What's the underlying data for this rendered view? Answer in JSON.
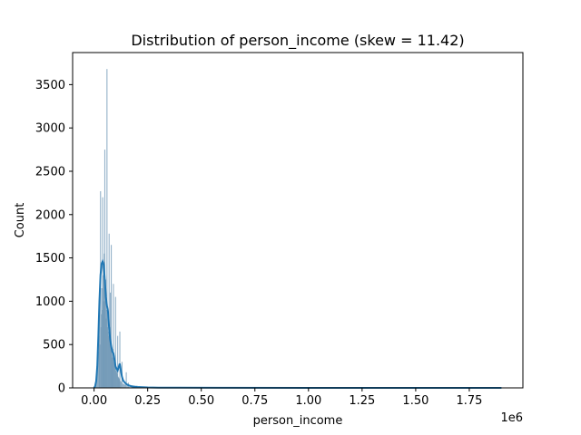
{
  "chart_data": {
    "type": "bar",
    "title": "Distribution of person_income (skew = 11.42)",
    "xlabel": "person_income",
    "ylabel": "Count",
    "x_offset_label": "1e6",
    "xlim": [
      -100000,
      2000000
    ],
    "ylim": [
      0,
      3870
    ],
    "xticks": [
      0,
      250000,
      500000,
      750000,
      1000000,
      1250000,
      1500000,
      1750000
    ],
    "xtick_labels": [
      "0.00",
      "0.25",
      "0.50",
      "0.75",
      "1.00",
      "1.25",
      "1.50",
      "1.75"
    ],
    "yticks": [
      0,
      500,
      1000,
      1500,
      2000,
      2500,
      3000,
      3500
    ],
    "ytick_labels": [
      "0",
      "500",
      "1000",
      "1500",
      "2000",
      "2500",
      "3000",
      "3500"
    ],
    "grid": false,
    "colors": {
      "bar": "#6f97b5",
      "kde": "#1f77b4"
    },
    "histogram_bars": [
      {
        "x": 4000,
        "value": 20
      },
      {
        "x": 8000,
        "value": 60
      },
      {
        "x": 12000,
        "value": 140
      },
      {
        "x": 16000,
        "value": 250
      },
      {
        "x": 20000,
        "value": 420
      },
      {
        "x": 23000,
        "value": 600
      },
      {
        "x": 25000,
        "value": 900
      },
      {
        "x": 27000,
        "value": 500
      },
      {
        "x": 30000,
        "value": 2270
      },
      {
        "x": 32000,
        "value": 700
      },
      {
        "x": 34000,
        "value": 850
      },
      {
        "x": 36000,
        "value": 1150
      },
      {
        "x": 38000,
        "value": 900
      },
      {
        "x": 40000,
        "value": 2200
      },
      {
        "x": 42000,
        "value": 1300
      },
      {
        "x": 44000,
        "value": 1000
      },
      {
        "x": 46000,
        "value": 1400
      },
      {
        "x": 48000,
        "value": 1550
      },
      {
        "x": 50000,
        "value": 2750
      },
      {
        "x": 52000,
        "value": 1000
      },
      {
        "x": 54000,
        "value": 1250
      },
      {
        "x": 56000,
        "value": 800
      },
      {
        "x": 58000,
        "value": 900
      },
      {
        "x": 60000,
        "value": 3680
      },
      {
        "x": 62000,
        "value": 700
      },
      {
        "x": 64000,
        "value": 900
      },
      {
        "x": 66000,
        "value": 650
      },
      {
        "x": 68000,
        "value": 600
      },
      {
        "x": 70000,
        "value": 1780
      },
      {
        "x": 72000,
        "value": 600
      },
      {
        "x": 74000,
        "value": 700
      },
      {
        "x": 76000,
        "value": 1100
      },
      {
        "x": 78000,
        "value": 500
      },
      {
        "x": 80000,
        "value": 1650
      },
      {
        "x": 82000,
        "value": 450
      },
      {
        "x": 84000,
        "value": 350
      },
      {
        "x": 86000,
        "value": 450
      },
      {
        "x": 88000,
        "value": 350
      },
      {
        "x": 90000,
        "value": 1200
      },
      {
        "x": 92000,
        "value": 300
      },
      {
        "x": 94000,
        "value": 280
      },
      {
        "x": 96000,
        "value": 300
      },
      {
        "x": 98000,
        "value": 250
      },
      {
        "x": 100000,
        "value": 1050
      },
      {
        "x": 102000,
        "value": 200
      },
      {
        "x": 104000,
        "value": 180
      },
      {
        "x": 106000,
        "value": 200
      },
      {
        "x": 108000,
        "value": 160
      },
      {
        "x": 110000,
        "value": 600
      },
      {
        "x": 112000,
        "value": 130
      },
      {
        "x": 114000,
        "value": 120
      },
      {
        "x": 116000,
        "value": 110
      },
      {
        "x": 118000,
        "value": 100
      },
      {
        "x": 120000,
        "value": 650
      },
      {
        "x": 123000,
        "value": 80
      },
      {
        "x": 126000,
        "value": 70
      },
      {
        "x": 130000,
        "value": 300
      },
      {
        "x": 134000,
        "value": 50
      },
      {
        "x": 138000,
        "value": 45
      },
      {
        "x": 142000,
        "value": 40
      },
      {
        "x": 146000,
        "value": 35
      },
      {
        "x": 150000,
        "value": 180
      },
      {
        "x": 155000,
        "value": 25
      },
      {
        "x": 160000,
        "value": 60
      },
      {
        "x": 166000,
        "value": 15
      },
      {
        "x": 175000,
        "value": 30
      },
      {
        "x": 185000,
        "value": 10
      },
      {
        "x": 200000,
        "value": 25
      },
      {
        "x": 220000,
        "value": 6
      },
      {
        "x": 250000,
        "value": 8
      },
      {
        "x": 300000,
        "value": 4
      },
      {
        "x": 350000,
        "value": 3
      }
    ],
    "kde_line": {
      "x": [
        0,
        5000,
        10000,
        15000,
        20000,
        25000,
        30000,
        35000,
        40000,
        45000,
        50000,
        55000,
        60000,
        65000,
        70000,
        75000,
        80000,
        85000,
        90000,
        95000,
        100000,
        105000,
        110000,
        115000,
        120000,
        125000,
        130000,
        135000,
        140000,
        150000,
        160000,
        175000,
        200000,
        250000,
        300000,
        400000,
        600000,
        1000000,
        1500000,
        1900000
      ],
      "y": [
        0,
        20,
        80,
        250,
        600,
        1000,
        1300,
        1430,
        1460,
        1420,
        1250,
        1050,
        950,
        880,
        700,
        560,
        480,
        420,
        400,
        330,
        250,
        220,
        200,
        240,
        280,
        200,
        130,
        90,
        70,
        45,
        30,
        18,
        10,
        5,
        3,
        2,
        1,
        0,
        0,
        0
      ]
    }
  }
}
